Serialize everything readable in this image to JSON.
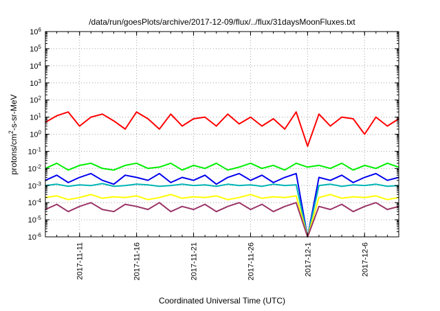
{
  "chart_data": {
    "type": "line",
    "title": "/data/run/goesPlots/archive/2017-12-09/flux/../flux/31daysMoonFluxes.txt",
    "xlabel": "Coordinated Universal Time (UTC)",
    "ylabel": {
      "prefix": "protons/cm",
      "superscript": "2",
      "suffix": "-s-sr-MeV"
    },
    "x_range": [
      "2017-11-08",
      "2017-12-09"
    ],
    "x_tick_labels": [
      "2017-11-11",
      "2017-11-16",
      "2017-11-21",
      "2017-11-26",
      "2017-12-1",
      "2017-12-6"
    ],
    "y_scale": "log",
    "ylim": [
      1e-06,
      1000000.0
    ],
    "y_tick_labels": [
      {
        "base": "10",
        "exp": "-6"
      },
      {
        "base": "10",
        "exp": "-5"
      },
      {
        "base": "10",
        "exp": "-4"
      },
      {
        "base": "10",
        "exp": "-3"
      },
      {
        "base": "10",
        "exp": "-2"
      },
      {
        "base": "10",
        "exp": "-1"
      },
      {
        "base": "10",
        "exp": "0"
      },
      {
        "base": "10",
        "exp": "1"
      },
      {
        "base": "10",
        "exp": "2"
      },
      {
        "base": "10",
        "exp": "3"
      },
      {
        "base": "10",
        "exp": "4"
      },
      {
        "base": "10",
        "exp": "5"
      },
      {
        "base": "10",
        "exp": "6"
      }
    ],
    "grid": true,
    "legend": "none",
    "series": [
      {
        "color": "#ff0000",
        "x": [
          "2017-11-08",
          "2017-11-09",
          "2017-11-10",
          "2017-11-11",
          "2017-11-12",
          "2017-11-13",
          "2017-11-14",
          "2017-11-15",
          "2017-11-16",
          "2017-11-17",
          "2017-11-18",
          "2017-11-19",
          "2017-11-20",
          "2017-11-21",
          "2017-11-22",
          "2017-11-23",
          "2017-11-24",
          "2017-11-25",
          "2017-11-26",
          "2017-11-27",
          "2017-11-28",
          "2017-11-29",
          "2017-11-30",
          "2017-12-01",
          "2017-12-02",
          "2017-12-03",
          "2017-12-04",
          "2017-12-05",
          "2017-12-06",
          "2017-12-07",
          "2017-12-08",
          "2017-12-09"
        ],
        "values": [
          5,
          12,
          20,
          3,
          10,
          15,
          6,
          2,
          20,
          8,
          2,
          15,
          3,
          8,
          10,
          3,
          15,
          4,
          10,
          3,
          8,
          2,
          20,
          0.2,
          15,
          3,
          10,
          8,
          1,
          10,
          3,
          8
        ]
      },
      {
        "color": "#00ee00",
        "x": [
          "2017-11-08",
          "2017-11-09",
          "2017-11-10",
          "2017-11-11",
          "2017-11-12",
          "2017-11-13",
          "2017-11-14",
          "2017-11-15",
          "2017-11-16",
          "2017-11-17",
          "2017-11-18",
          "2017-11-19",
          "2017-11-20",
          "2017-11-21",
          "2017-11-22",
          "2017-11-23",
          "2017-11-24",
          "2017-11-25",
          "2017-11-26",
          "2017-11-27",
          "2017-11-28",
          "2017-11-29",
          "2017-11-30",
          "2017-12-01",
          "2017-12-02",
          "2017-12-03",
          "2017-12-04",
          "2017-12-05",
          "2017-12-06",
          "2017-12-07",
          "2017-12-08",
          "2017-12-09"
        ],
        "values": [
          0.01,
          0.02,
          0.008,
          0.015,
          0.02,
          0.01,
          0.008,
          0.015,
          0.02,
          0.01,
          0.012,
          0.02,
          0.008,
          0.015,
          0.01,
          0.02,
          0.008,
          0.012,
          0.02,
          0.01,
          0.015,
          0.008,
          0.02,
          0.012,
          0.015,
          0.01,
          0.02,
          0.008,
          0.015,
          0.01,
          0.02,
          0.012
        ]
      },
      {
        "color": "#0000ee",
        "x": [
          "2017-11-08",
          "2017-11-09",
          "2017-11-10",
          "2017-11-11",
          "2017-11-12",
          "2017-11-13",
          "2017-11-14",
          "2017-11-15",
          "2017-11-16",
          "2017-11-17",
          "2017-11-18",
          "2017-11-19",
          "2017-11-20",
          "2017-11-21",
          "2017-11-22",
          "2017-11-23",
          "2017-11-24",
          "2017-11-25",
          "2017-11-26",
          "2017-11-27",
          "2017-11-28",
          "2017-11-29",
          "2017-11-30",
          "2017-12-01",
          "2017-12-02",
          "2017-12-03",
          "2017-12-04",
          "2017-12-05",
          "2017-12-06",
          "2017-12-07",
          "2017-12-08",
          "2017-12-09"
        ],
        "values": [
          0.002,
          0.004,
          0.0015,
          0.003,
          0.005,
          0.002,
          0.0012,
          0.004,
          0.003,
          0.002,
          0.005,
          0.0015,
          0.003,
          0.002,
          0.004,
          0.0012,
          0.003,
          0.005,
          0.002,
          0.004,
          0.0015,
          0.003,
          0.005,
          1e-06,
          0.003,
          0.002,
          0.004,
          0.0015,
          0.003,
          0.005,
          0.002,
          0.003
        ]
      },
      {
        "color": "#00b4b4",
        "x": [
          "2017-11-08",
          "2017-11-09",
          "2017-11-10",
          "2017-11-11",
          "2017-11-12",
          "2017-11-13",
          "2017-11-14",
          "2017-11-15",
          "2017-11-16",
          "2017-11-17",
          "2017-11-18",
          "2017-11-19",
          "2017-11-20",
          "2017-11-21",
          "2017-11-22",
          "2017-11-23",
          "2017-11-24",
          "2017-11-25",
          "2017-11-26",
          "2017-11-27",
          "2017-11-28",
          "2017-11-29",
          "2017-11-30",
          "2017-12-01",
          "2017-12-02",
          "2017-12-03",
          "2017-12-04",
          "2017-12-05",
          "2017-12-06",
          "2017-12-07",
          "2017-12-08",
          "2017-12-09"
        ],
        "values": [
          0.001,
          0.0012,
          0.0009,
          0.0011,
          0.001,
          0.0013,
          0.0009,
          0.001,
          0.0012,
          0.0011,
          0.0009,
          0.001,
          0.0012,
          0.001,
          0.0011,
          0.0009,
          0.0012,
          0.001,
          0.0011,
          0.0009,
          0.0012,
          0.001,
          0.0011,
          1e-06,
          0.001,
          0.0012,
          0.0009,
          0.0011,
          0.001,
          0.0012,
          0.0009,
          0.001
        ]
      },
      {
        "color": "#ffff00",
        "x": [
          "2017-11-08",
          "2017-11-09",
          "2017-11-10",
          "2017-11-11",
          "2017-11-12",
          "2017-11-13",
          "2017-11-14",
          "2017-11-15",
          "2017-11-16",
          "2017-11-17",
          "2017-11-18",
          "2017-11-19",
          "2017-11-20",
          "2017-11-21",
          "2017-11-22",
          "2017-11-23",
          "2017-11-24",
          "2017-11-25",
          "2017-11-26",
          "2017-11-27",
          "2017-11-28",
          "2017-11-29",
          "2017-11-30",
          "2017-12-01",
          "2017-12-02",
          "2017-12-03",
          "2017-12-04",
          "2017-12-05",
          "2017-12-06",
          "2017-12-07",
          "2017-12-08",
          "2017-12-09"
        ],
        "values": [
          0.0002,
          0.00025,
          0.00015,
          0.0002,
          0.0003,
          0.00018,
          0.00022,
          0.0002,
          0.00025,
          0.00015,
          0.0002,
          0.0003,
          0.00018,
          0.00022,
          0.0002,
          0.00025,
          0.00015,
          0.0002,
          0.0003,
          0.00018,
          0.00022,
          0.0002,
          0.00025,
          1e-06,
          0.0002,
          0.0003,
          0.00018,
          0.00022,
          0.0002,
          0.00025,
          0.00015,
          0.0002
        ]
      },
      {
        "color": "#993366",
        "x": [
          "2017-11-08",
          "2017-11-09",
          "2017-11-10",
          "2017-11-11",
          "2017-11-12",
          "2017-11-13",
          "2017-11-14",
          "2017-11-15",
          "2017-11-16",
          "2017-11-17",
          "2017-11-18",
          "2017-11-19",
          "2017-11-20",
          "2017-11-21",
          "2017-11-22",
          "2017-11-23",
          "2017-11-24",
          "2017-11-25",
          "2017-11-26",
          "2017-11-27",
          "2017-11-28",
          "2017-11-29",
          "2017-11-30",
          "2017-12-01",
          "2017-12-02",
          "2017-12-03",
          "2017-12-04",
          "2017-12-05",
          "2017-12-06",
          "2017-12-07",
          "2017-12-08",
          "2017-12-09"
        ],
        "values": [
          4e-05,
          8e-05,
          3e-05,
          6e-05,
          0.0001,
          4e-05,
          3e-05,
          8e-05,
          6e-05,
          4e-05,
          0.0001,
          3e-05,
          6e-05,
          4e-05,
          8e-05,
          3e-05,
          6e-05,
          0.0001,
          4e-05,
          8e-05,
          3e-05,
          6e-05,
          0.0001,
          1e-06,
          6e-05,
          4e-05,
          8e-05,
          3e-05,
          6e-05,
          0.0001,
          4e-05,
          6e-05
        ]
      }
    ]
  }
}
